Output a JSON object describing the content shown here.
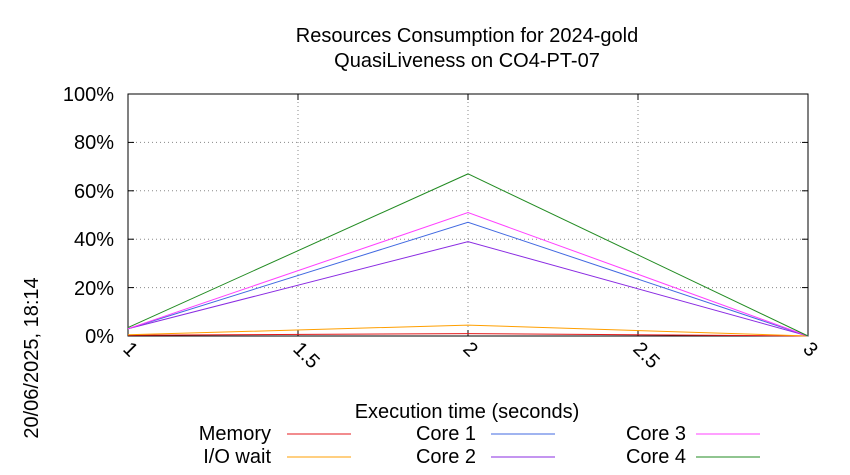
{
  "chart_data": {
    "type": "line",
    "title": "Resources Consumption for 2024-gold",
    "subtitle": "QuasiLiveness on CO4-PT-07",
    "xlabel": "Execution time (seconds)",
    "ylabel": "",
    "side_label": "20/06/2025, 18:14",
    "xlim": [
      1,
      3
    ],
    "ylim": [
      0,
      100
    ],
    "x_ticks": [
      "1",
      "1.5",
      "2",
      "2.5",
      "3"
    ],
    "y_ticks": [
      "0%",
      "20%",
      "40%",
      "60%",
      "80%",
      "100%"
    ],
    "grid": true,
    "legend_position": "bottom",
    "x": [
      1,
      2,
      3
    ],
    "series": [
      {
        "name": "Memory",
        "color": "#e41a1c",
        "values": [
          0.3,
          1,
          0
        ]
      },
      {
        "name": "I/O wait",
        "color": "#ff9f00",
        "values": [
          0.5,
          4.5,
          0
        ]
      },
      {
        "name": "Core 1",
        "color": "#4169e1",
        "values": [
          3,
          47,
          0
        ]
      },
      {
        "name": "Core 2",
        "color": "#8a2be2",
        "values": [
          3,
          39,
          0
        ]
      },
      {
        "name": "Core 3",
        "color": "#ff40ff",
        "values": [
          3,
          51,
          0
        ]
      },
      {
        "name": "Core 4",
        "color": "#228b22",
        "values": [
          3.5,
          67,
          0
        ]
      }
    ]
  }
}
